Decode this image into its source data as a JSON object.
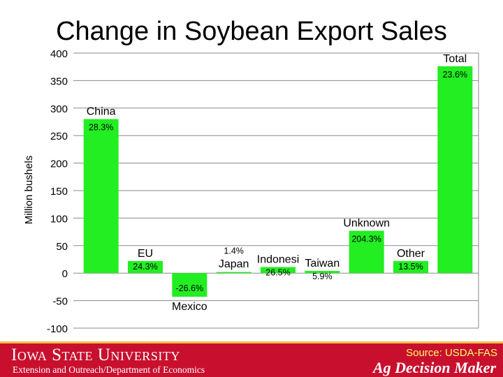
{
  "title": "Change in Soybean Export Sales",
  "footer": {
    "university": "Iowa State University",
    "department": "Extension and Outreach/Department of Economics",
    "source": "Source: USDA-FAS",
    "brand": "Ag Decision Maker"
  },
  "colors": {
    "bar": "#22ee22",
    "footer": "#c8102e",
    "grid": "#8a8a8a"
  },
  "chart_data": {
    "type": "bar",
    "ylabel": "Million bushels",
    "xlabel": "",
    "ylim": [
      -100,
      400
    ],
    "yticks": [
      400,
      350,
      300,
      250,
      200,
      150,
      100,
      50,
      0,
      -50,
      -100
    ],
    "grid": true,
    "categories": [
      "China",
      "EU",
      "Mexico",
      "Japan",
      "Indonesi",
      "Taiwan",
      "Unknown",
      "Other",
      "Total"
    ],
    "values": [
      280,
      22,
      -43,
      2,
      11,
      4,
      77,
      22,
      376
    ],
    "pct_labels": [
      "28.3%",
      "24.3%",
      "-26.6%",
      "1.4%",
      "26.5%",
      "5.9%",
      "204.3%",
      "13.5%",
      "23.6%"
    ]
  }
}
